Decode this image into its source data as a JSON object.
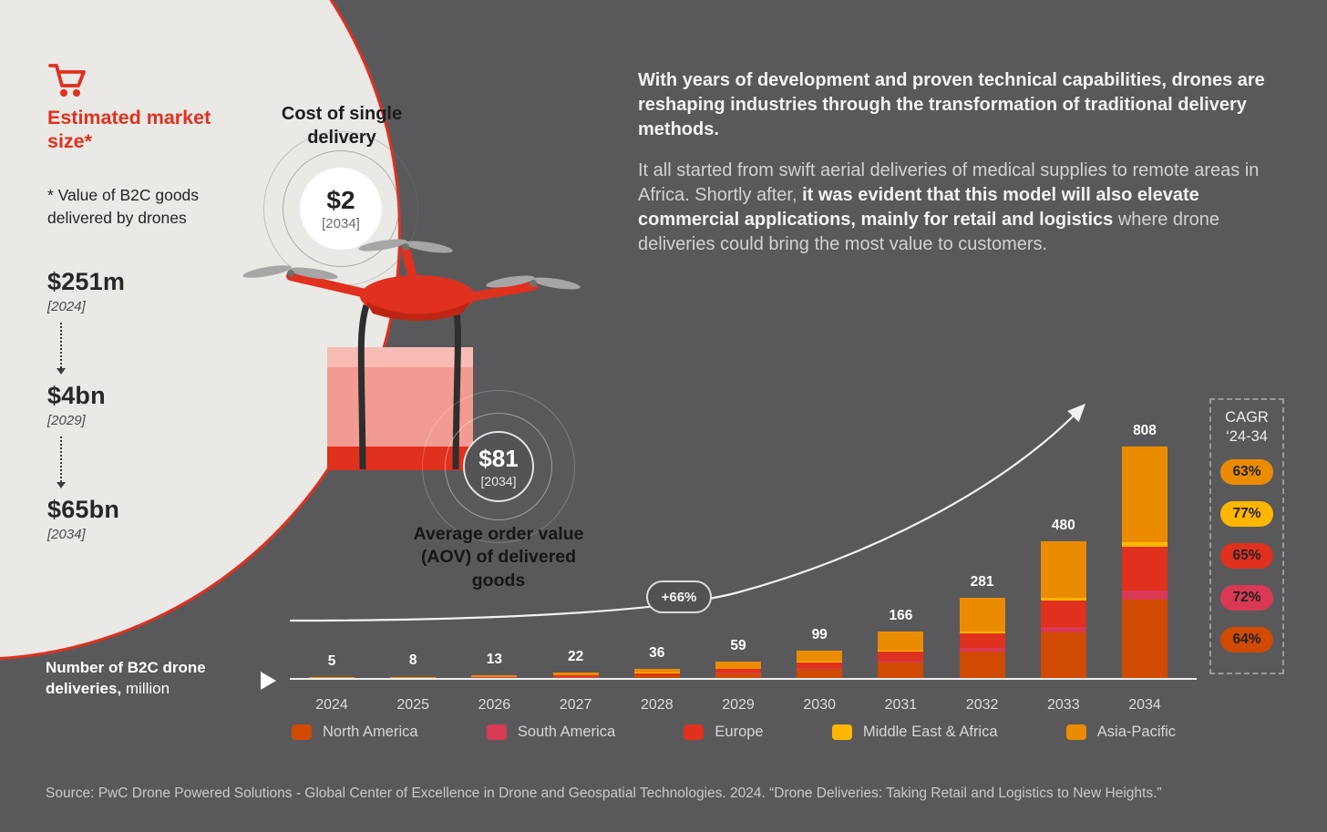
{
  "palette": {
    "background": "#59595b",
    "panel": "#ebe9e6",
    "red": "#e0301e",
    "dark_orange": "#d04a02",
    "tangerine": "#eb8c00",
    "yellow": "#ffb600",
    "rose": "#d93954"
  },
  "market_size": {
    "title": "Estimated market size*",
    "note": "* Value of B2C goods delivered by drones",
    "milestones": [
      {
        "value": "$251m",
        "year": "[2024]"
      },
      {
        "value": "$4bn",
        "year": "[2029]"
      },
      {
        "value": "$65bn",
        "year": "[2034]"
      }
    ]
  },
  "cost_single_delivery": {
    "label": "Cost of single delivery",
    "value": "$2",
    "year": "[2034]"
  },
  "aov": {
    "value": "$81",
    "year": "[2034]",
    "label": "Average order value (AOV) of delivered goods"
  },
  "intro": {
    "p1": "With years of development and proven technical capabilities, drones are reshaping industries through the transformation of traditional delivery methods.",
    "p2_start": "It all started from swift aerial deliveries of medical supplies to remote areas in Africa. Shortly after, ",
    "p2_bold": "it was evident that this model will also elevate commercial applications, mainly for retail and logistics",
    "p2_end": " where drone deliveries could bring the most value to customers."
  },
  "chart_data": {
    "type": "bar",
    "stacked": true,
    "title": "Number of B2C drone deliveries, million",
    "categories": [
      "2024",
      "2025",
      "2026",
      "2027",
      "2028",
      "2029",
      "2030",
      "2031",
      "2032",
      "2033",
      "2034"
    ],
    "totals": [
      5,
      8,
      13,
      22,
      36,
      59,
      99,
      166,
      281,
      480,
      808
    ],
    "series": [
      {
        "name": "North America",
        "color": "#d04a02",
        "values": [
          1.7,
          2.7,
          4.4,
          7.5,
          12.2,
          20,
          34,
          56,
          96,
          163,
          275
        ]
      },
      {
        "name": "South America",
        "color": "#d93954",
        "values": [
          0.2,
          0.3,
          0.5,
          0.9,
          1.4,
          2.4,
          4,
          7,
          11,
          19,
          32
        ]
      },
      {
        "name": "Europe",
        "color": "#e0301e",
        "values": [
          1.0,
          1.5,
          2.5,
          4.2,
          6.9,
          11.2,
          19,
          32,
          53,
          91,
          152
        ]
      },
      {
        "name": "Middle East & Africa",
        "color": "#ffb600",
        "values": [
          0.1,
          0.2,
          0.3,
          0.4,
          0.7,
          1.2,
          2,
          3,
          6,
          10,
          16
        ]
      },
      {
        "name": "Asia-Pacific",
        "color": "#eb8c00",
        "values": [
          2.0,
          3.3,
          5.3,
          9.0,
          14.8,
          24.2,
          40,
          68,
          115,
          197,
          333
        ]
      }
    ],
    "growth_annotation": "+66%",
    "ylim": [
      0,
      850
    ],
    "grid": false,
    "legend_position": "bottom"
  },
  "deliveries_label": {
    "bold": "Number of B2C drone deliveries,",
    "regular": " million"
  },
  "cagr": {
    "title_line1": "CAGR",
    "title_line2": "‘24-34",
    "items": [
      {
        "label": "63%",
        "color": "#eb8c00"
      },
      {
        "label": "77%",
        "color": "#ffb600"
      },
      {
        "label": "65%",
        "color": "#e0301e"
      },
      {
        "label": "72%",
        "color": "#d93954"
      },
      {
        "label": "64%",
        "color": "#d04a02"
      }
    ]
  },
  "legend": [
    {
      "name": "North America",
      "color": "#d04a02"
    },
    {
      "name": "South America",
      "color": "#d93954"
    },
    {
      "name": "Europe",
      "color": "#e0301e"
    },
    {
      "name": "Middle East & Africa",
      "color": "#ffb600"
    },
    {
      "name": "Asia-Pacific",
      "color": "#eb8c00"
    }
  ],
  "source": "Source: PwC Drone Powered Solutions - Global Center of Excellence in Drone and Geospatial Technologies. 2024. “Drone Deliveries: Taking Retail and Logistics to New Heights.”"
}
